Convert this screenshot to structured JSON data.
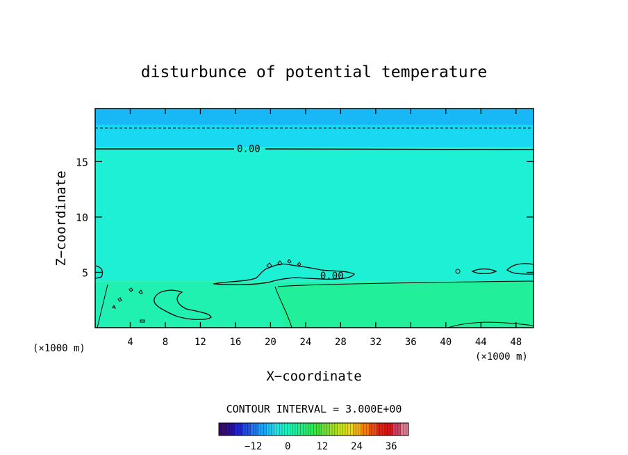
{
  "chart_data": {
    "type": "heatmap",
    "title": "disturbunce of potential temperature",
    "xlabel": "X−coordinate",
    "ylabel": "Z−coordinate",
    "x_unit_left": "(×1000 m)",
    "x_unit_right": "(×1000 m)",
    "xlim": [
      0,
      50
    ],
    "ylim": [
      0,
      19.8
    ],
    "x_ticks": [
      4,
      8,
      12,
      16,
      20,
      24,
      28,
      32,
      36,
      40,
      44,
      48
    ],
    "y_ticks": [
      5,
      10,
      15
    ],
    "grid": false,
    "contour_interval_label": "CONTOUR INTERVAL = 3.000E+00",
    "contour_labels": [
      {
        "text": "0.00",
        "x": 17.5,
        "y": 16.2
      },
      {
        "text": "0.00",
        "x": 27.0,
        "y": 4.7
      }
    ],
    "bands": [
      {
        "z_from": 18.3,
        "z_to": 19.8,
        "value": -6,
        "color": "#17b8f5"
      },
      {
        "z_from": 16.3,
        "z_to": 18.3,
        "value": -3,
        "color": "#19d8f2"
      },
      {
        "z_from": 4.2,
        "z_to": 16.3,
        "value": 0,
        "color": "#1ef0d6"
      },
      {
        "z_from": 0,
        "z_to": 4.2,
        "value": 1.5,
        "color": "#20f0b0"
      }
    ],
    "colorbar": {
      "min": -24,
      "max": 42,
      "tick_values": [
        -12,
        0,
        12,
        24,
        36
      ],
      "tick_labels": [
        "−12",
        "0",
        "12",
        "24",
        "36"
      ],
      "colors": [
        "#3a0a6e",
        "#2a0f9c",
        "#1e26c8",
        "#1e4ee6",
        "#1e78f0",
        "#1ea0f4",
        "#1ec8f2",
        "#1ee6e0",
        "#1ef0c0",
        "#1ef0a0",
        "#20ee80",
        "#2ae860",
        "#48e040",
        "#70e030",
        "#a0e028",
        "#c8e020",
        "#e8d818",
        "#f0b010",
        "#f08010",
        "#f04c10",
        "#e82010",
        "#d01818",
        "#d04060",
        "#e07890"
      ]
    }
  }
}
